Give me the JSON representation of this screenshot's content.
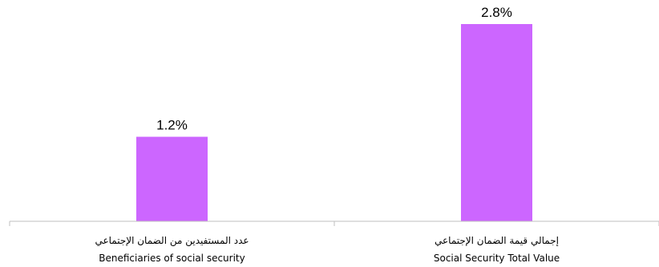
{
  "chart_data": {
    "type": "bar",
    "categories": [
      {
        "label_ar": "عدد المستفيدين من الضمان الإجتماعي",
        "label_en": "Beneficiaries of social security"
      },
      {
        "label_ar": "إجمالي قيمة الضمان الإجتماعي",
        "label_en": "Social Security Total Value"
      }
    ],
    "values": [
      1.2,
      2.8
    ],
    "value_labels": [
      "1.2%",
      "2.8%"
    ],
    "ylim": [
      0,
      2.8
    ],
    "grid": false,
    "legend": "none",
    "colors": {
      "bar": "#cc66ff",
      "axis": "#bfbfbf",
      "text": "#000000"
    }
  }
}
